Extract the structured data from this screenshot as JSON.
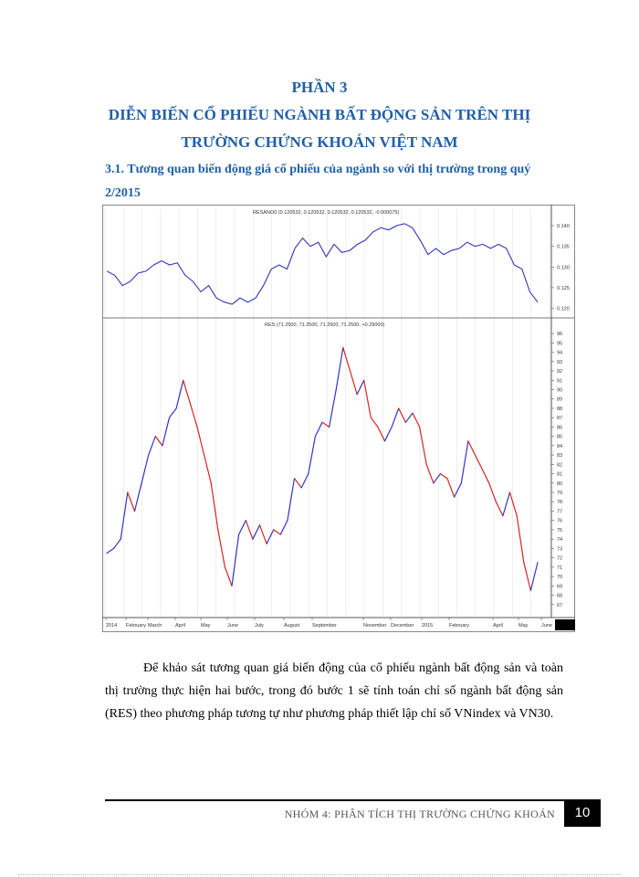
{
  "document": {
    "part_title": "PHẦN 3",
    "heading_line1": "DIỄN BIẾN CỔ PHIẾU NGÀNH BẤT ĐỘNG SẢN TRÊN THỊ",
    "heading_line2": "TRƯỜNG CHỨNG KHOÁN VIỆT NAM",
    "subheading_line1": "3.1. Tương quan biến động giá cổ phiếu của ngành so với thị trường trong quý",
    "subheading_line2": "2/2015",
    "paragraph": "Để khảo sát tương quan giá biến động của cổ phiếu ngành bất động sản và toàn thị trường thực hiện hai bước, trong đó bước 1 sẽ tính toán chỉ số ngành bất động sản (RES) theo phương pháp tương tự như phương pháp thiết lập chỉ số VNindex và VN30.",
    "footer_text": "NHÓM 4: PHÂN TÍCH THỊ TRƯỜNG CHỨNG KHOÁN",
    "page_number": "10"
  },
  "chart_data": [
    {
      "type": "line",
      "title": "RESANO0 (0.120532, 0.120532, 0.120532, 0.120532, -0.000075)",
      "yticks": [
        "0.140",
        "0.135",
        "0.130",
        "0.125",
        "0.120"
      ],
      "ylim": [
        0.119,
        0.142
      ],
      "values": [
        0.129,
        0.128,
        0.1255,
        0.1265,
        0.1285,
        0.129,
        0.1305,
        0.1315,
        0.1305,
        0.131,
        0.128,
        0.1265,
        0.124,
        0.1255,
        0.1225,
        0.1215,
        0.121,
        0.1225,
        0.1215,
        0.1225,
        0.1255,
        0.1295,
        0.1305,
        0.1295,
        0.1345,
        0.137,
        0.135,
        0.136,
        0.1325,
        0.1355,
        0.1335,
        0.134,
        0.1355,
        0.1365,
        0.1385,
        0.1395,
        0.139,
        0.14,
        0.1405,
        0.1395,
        0.1365,
        0.133,
        0.1345,
        0.133,
        0.134,
        0.1345,
        0.136,
        0.135,
        0.1355,
        0.1345,
        0.1355,
        0.1345,
        0.1305,
        0.1295,
        0.124,
        0.1215
      ],
      "color": "#3333bb"
    },
    {
      "type": "line",
      "title": "RES (71.2500, 71.2500, 71.2500, 71.2500, +0.29000)",
      "yticks": [
        "96",
        "95",
        "94",
        "93",
        "92",
        "91",
        "90",
        "89",
        "88",
        "87",
        "86",
        "85",
        "84",
        "83",
        "82",
        "81",
        "80",
        "79",
        "78",
        "77",
        "76",
        "75",
        "74",
        "73",
        "72",
        "71",
        "70",
        "69",
        "68",
        "67"
      ],
      "ylim": [
        66,
        96.5
      ],
      "xticks": [
        "2014",
        "February",
        "March",
        "April",
        "May",
        "June",
        "July",
        "August",
        "September",
        "November",
        "December",
        "2015",
        "February",
        "April",
        "May",
        "June"
      ],
      "values": [
        72.5,
        73,
        74,
        79,
        77,
        80,
        83,
        85,
        84,
        87,
        88,
        91,
        88.5,
        86,
        83,
        80,
        75,
        71,
        69,
        74.5,
        76,
        74,
        75.5,
        73.5,
        75,
        74.5,
        76,
        80.5,
        79.5,
        81,
        85,
        86.5,
        86,
        90,
        94.5,
        92,
        89.5,
        91,
        87,
        86,
        84.5,
        86,
        88,
        86.5,
        87.5,
        86,
        82,
        80,
        81,
        80.5,
        78.5,
        80,
        84.5,
        83,
        81.5,
        80,
        78,
        76.5,
        79,
        76.5,
        71.5,
        68.5,
        71.5
      ],
      "colors": [
        "#3333cc",
        "#dd2222"
      ]
    }
  ]
}
